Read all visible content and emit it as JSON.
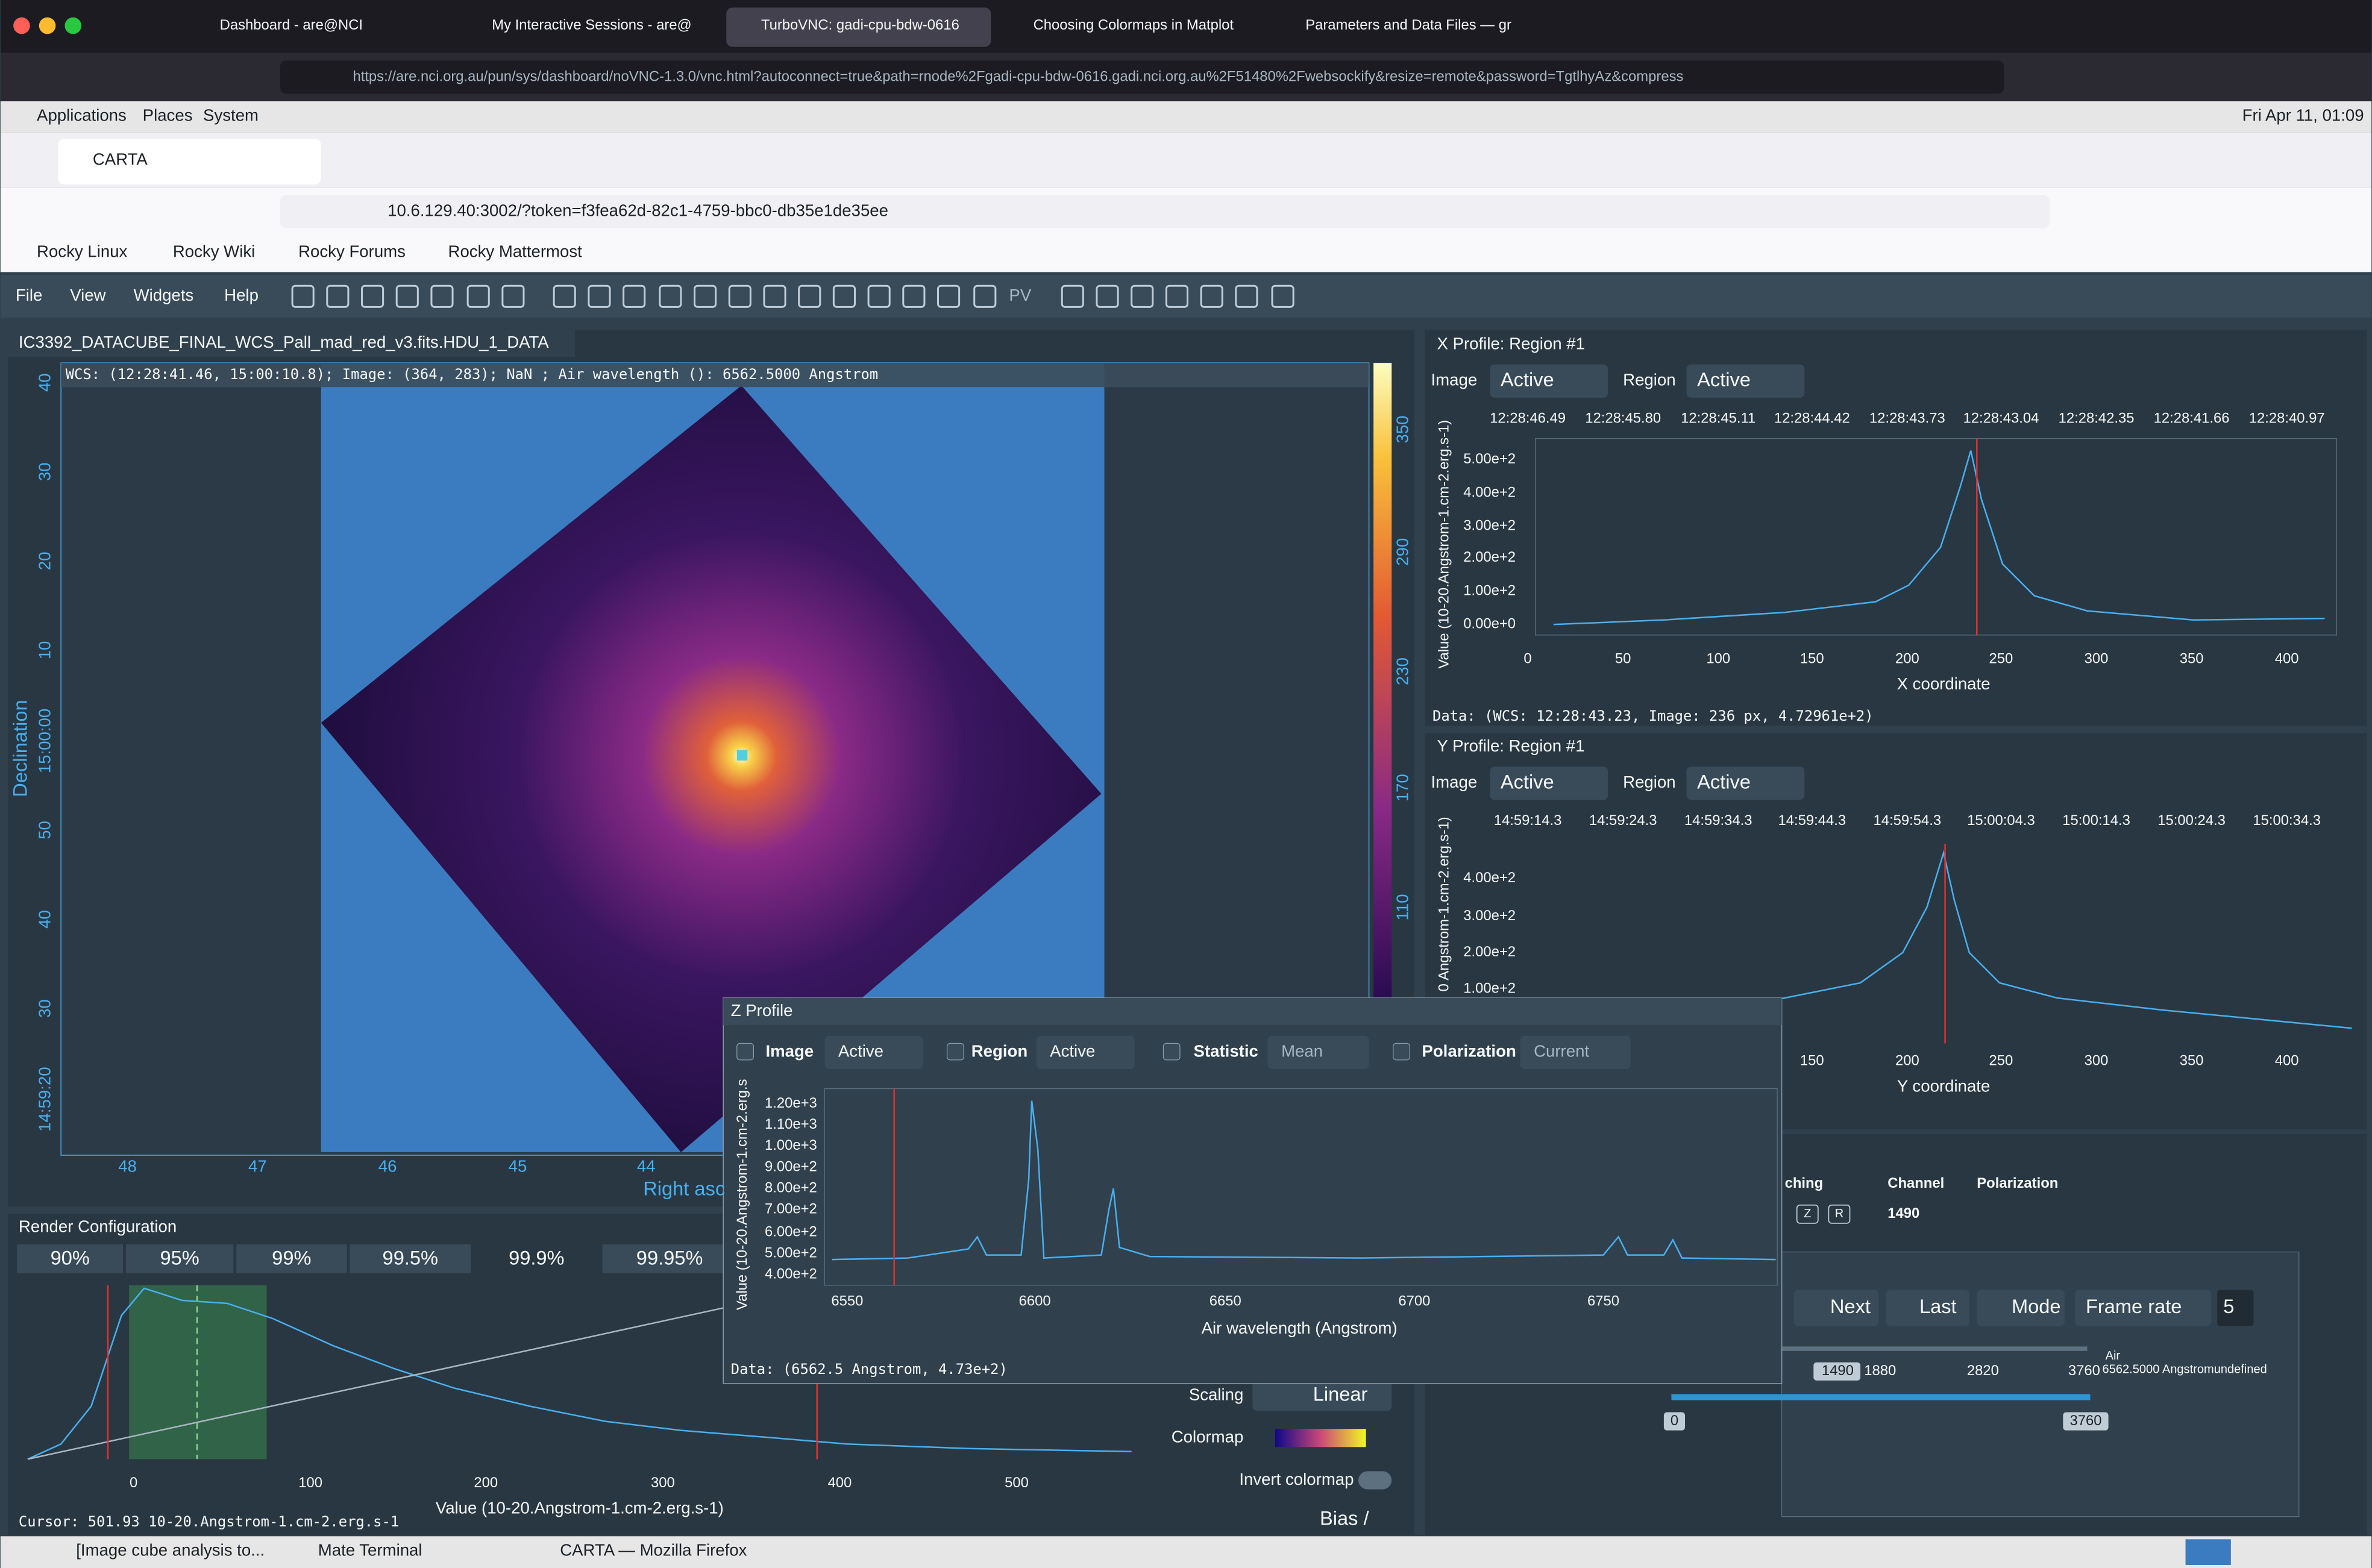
{
  "browser": {
    "tabs": [
      "Dashboard - are@NCI",
      "My Interactive Sessions - are@",
      "TurboVNC: gadi-cpu-bdw-0616",
      "Choosing Colormaps in Matplot",
      "Parameters and Data Files — gr"
    ],
    "url": "https://are.nci.org.au/pun/sys/dashboard/noVNC-1.3.0/vnc.html?autoconnect=true&path=rnode%2Fgadi-cpu-bdw-0616.gadi.nci.org.au%2F51480%2Fwebsockify&resize=remote&password=TgtlhyAz&compress"
  },
  "desktop": {
    "menus": [
      "Applications",
      "Places",
      "System"
    ],
    "clock": "Fri Apr 11, 01:09",
    "taskbar": [
      "[Image cube analysis to...",
      "Mate Terminal",
      "CARTA — Mozilla Firefox"
    ]
  },
  "firefox": {
    "tab": "CARTA",
    "url": "10.6.129.40:3002/?token=f3fea62d-82c1-4759-bbc0-db35e1de35ee",
    "bookmarks": [
      "Rocky Linux",
      "Rocky Wiki",
      "Rocky Forums",
      "Rocky Mattermost"
    ]
  },
  "carta": {
    "menu": [
      "File",
      "View",
      "Widgets",
      "Help"
    ],
    "toolbar_label": "PV",
    "image": {
      "title": "IC3392_DATACUBE_FINAL_WCS_Pall_mad_red_v3.fits.HDU_1_DATA",
      "cursor_info": "WCS: (12:28:41.46, 15:00:10.8); Image: (364, 283); NaN ; Air wavelength (): 6562.5000 Angstrom",
      "dec_ticks": [
        "40",
        "30",
        "20",
        "10",
        "15:00:00",
        "50",
        "40",
        "30",
        "14:59:20"
      ],
      "ra_ticks": [
        "48",
        "47",
        "46",
        "45",
        "44"
      ],
      "ra_label": "Right asc",
      "dec_label": "Declination",
      "colorbar_ticks": [
        "350",
        "290",
        "230",
        "170",
        "110"
      ]
    },
    "x_profile": {
      "title": "X Profile: Region #1",
      "image_label": "Image",
      "image_value": "Active",
      "region_label": "Region",
      "region_value": "Active",
      "top_ticks": [
        "12:28:46.49",
        "12:28:45.80",
        "12:28:45.11",
        "12:28:44.42",
        "12:28:43.73",
        "12:28:43.04",
        "12:28:42.35",
        "12:28:41.66",
        "12:28:40.97"
      ],
      "y_ticks": [
        "5.00e+2",
        "4.00e+2",
        "3.00e+2",
        "2.00e+2",
        "1.00e+2",
        "0.00e+0"
      ],
      "x_ticks": [
        "0",
        "50",
        "100",
        "150",
        "200",
        "250",
        "300",
        "350",
        "400"
      ],
      "x_label": "X coordinate",
      "y_label": "Value (10-20.Angstrom-1.cm-2.erg.s-1)",
      "footer": "Data: (WCS: 12:28:43.23, Image: 236 px, 4.72961e+2)"
    },
    "y_profile": {
      "title": "Y Profile: Region #1",
      "image_label": "Image",
      "image_value": "Active",
      "region_label": "Region",
      "region_value": "Active",
      "top_ticks": [
        "14:59:14.3",
        "14:59:24.3",
        "14:59:34.3",
        "14:59:44.3",
        "14:59:54.3",
        "15:00:04.3",
        "15:00:14.3",
        "15:00:24.3",
        "15:00:34.3"
      ],
      "y_ticks": [
        "4.00e+2",
        "3.00e+2",
        "2.00e+2",
        "1.00e+2"
      ],
      "x_ticks": [
        "150",
        "200",
        "250",
        "300",
        "350",
        "400"
      ],
      "x_label": "Y coordinate",
      "y_label": "0 Angstrom-1.cm-2.erg.s-1)"
    },
    "z_profile": {
      "title": "Z Profile",
      "controls": [
        {
          "label": "Image",
          "value": "Active"
        },
        {
          "label": "Region",
          "value": "Active"
        },
        {
          "label": "Statistic",
          "value": "Mean"
        },
        {
          "label": "Polarization",
          "value": "Current"
        }
      ],
      "y_ticks": [
        "1.20e+3",
        "1.10e+3",
        "1.00e+3",
        "9.00e+2",
        "8.00e+2",
        "7.00e+2",
        "6.00e+2",
        "5.00e+2",
        "4.00e+2"
      ],
      "x_ticks": [
        "6550",
        "6600",
        "6650",
        "6700",
        "6750"
      ],
      "x_label": "Air wavelength (Angstrom)",
      "y_label": "Value (10-20.Angstrom-1.cm-2.erg.s",
      "footer": "Data: (6562.5 Angstrom, 4.73e+2)"
    },
    "render": {
      "title": "Render Configuration",
      "percentiles": [
        "90%",
        "95%",
        "99%",
        "99.5%",
        "99.9%",
        "99.95%"
      ],
      "x_ticks": [
        "0",
        "100",
        "200",
        "300",
        "400",
        "500"
      ],
      "x_label": "Value (10-20.Angstrom-1.cm-2.erg.s-1)",
      "cursor": "Cursor: 501.93 10-20.Angstrom-1.cm-2.erg.s-1",
      "scaling_label": "Scaling",
      "scaling_value": "Linear",
      "colormap_label": "Colormap",
      "invert_label": "Invert colormap",
      "bias_label": "Bias /"
    },
    "animator": {
      "headers": [
        "ching",
        "Channel",
        "Polarization"
      ],
      "channel": "1490",
      "stokes_buttons": [
        "Z",
        "R"
      ],
      "buttons": [
        "Next",
        "Last",
        "Mode",
        "Frame rate"
      ],
      "frame_rate": "5",
      "current": "1490",
      "slider_ticks": [
        "1880",
        "2820",
        "3760"
      ],
      "axis_type": "Air",
      "axis_value": "6562.5000 Angstromundefined",
      "range": [
        "0",
        "3760"
      ]
    }
  }
}
